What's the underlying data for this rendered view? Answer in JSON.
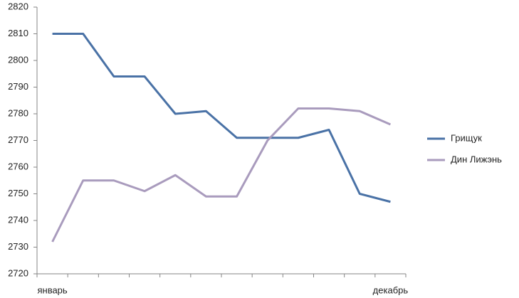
{
  "chart_data": {
    "type": "line",
    "categories": [
      "январь",
      null,
      null,
      null,
      null,
      null,
      null,
      null,
      null,
      null,
      null,
      "декабрь"
    ],
    "series": [
      {
        "name": "Грищук",
        "color": "#4a72a6",
        "values": [
          2810,
          2810,
          2794,
          2794,
          2780,
          2781,
          2771,
          2771,
          2771,
          2774,
          2750,
          2747
        ]
      },
      {
        "name": "Дин Лижэнь",
        "color": "#a99bbd",
        "values": [
          2732,
          2755,
          2755,
          2751,
          2757,
          2749,
          2749,
          2770,
          2782,
          2782,
          2781,
          2776
        ]
      }
    ],
    "ylim": [
      2720,
      2820
    ],
    "yticks": [
      2720,
      2730,
      2740,
      2750,
      2760,
      2770,
      2780,
      2790,
      2800,
      2810,
      2820
    ],
    "grid": false,
    "legend": "right"
  }
}
